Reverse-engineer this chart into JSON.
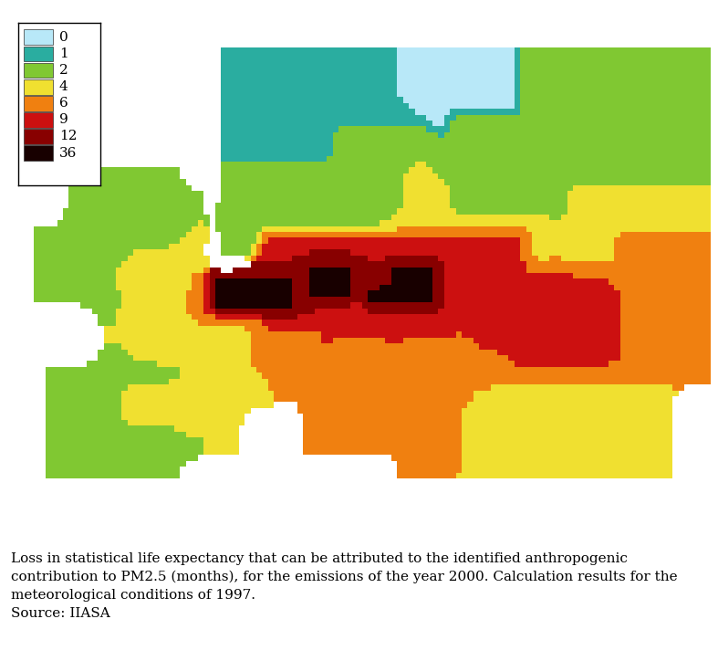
{
  "legend_labels": [
    "0",
    "1",
    "2",
    "4",
    "6",
    "9",
    "12",
    "36"
  ],
  "legend_colors": [
    "#b8e8f8",
    "#2aada0",
    "#80c832",
    "#f0e030",
    "#f08010",
    "#cc1010",
    "#880000",
    "#180000"
  ],
  "caption_line1": "Loss in statistical life expectancy that can be attributed to the identified anthropogenic",
  "caption_line2": "contribution to PM2.5 (months), for the emissions of the year 2000. Calculation results for the",
  "caption_line3": "meteorological conditions of 1997.",
  "caption_line4": "Source: IIASA",
  "background_color": "#ffffff",
  "caption_fontsize": 11.0,
  "legend_fontsize": 11
}
